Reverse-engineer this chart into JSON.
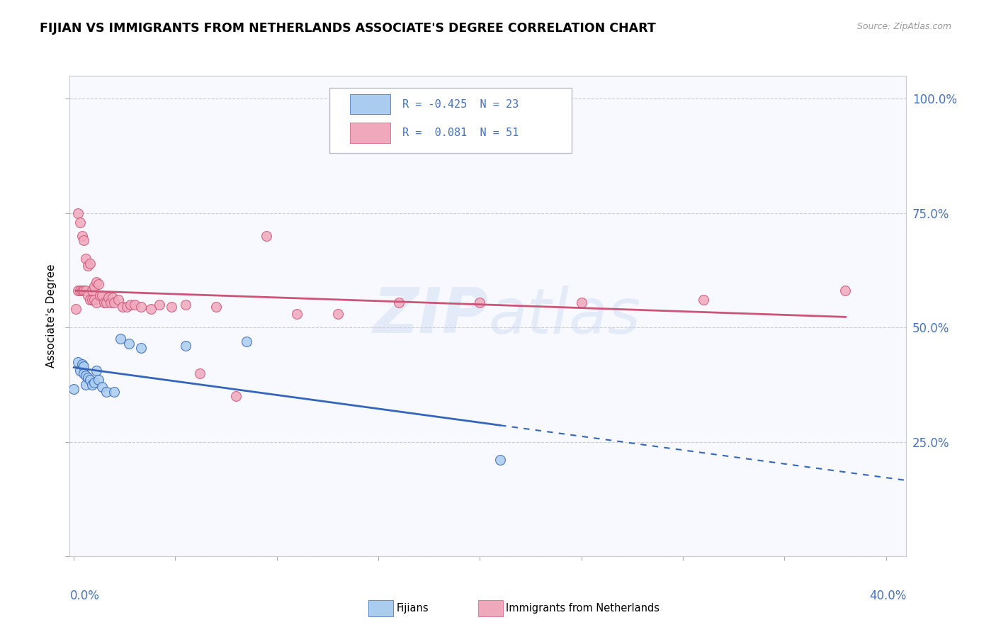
{
  "title": "FIJIAN VS IMMIGRANTS FROM NETHERLANDS ASSOCIATE'S DEGREE CORRELATION CHART",
  "source": "Source: ZipAtlas.com",
  "ylabel": "Associate's Degree",
  "fijian_color": "#aaccee",
  "netherlands_color": "#f0a8bc",
  "fijian_line_color": "#3366bb",
  "netherlands_line_color": "#cc5577",
  "background_color": "#ffffff",
  "plot_bg_color": "#f8f8ff",
  "xmin": -0.002,
  "xmax": 0.41,
  "ymin": 0.0,
  "ymax": 1.05,
  "r_fijian": -0.425,
  "n_fijian": 23,
  "r_neth": 0.081,
  "n_neth": 51,
  "fijian_x": [
    0.0,
    0.002,
    0.003,
    0.004,
    0.005,
    0.005,
    0.006,
    0.006,
    0.007,
    0.008,
    0.009,
    0.01,
    0.011,
    0.012,
    0.014,
    0.016,
    0.02,
    0.023,
    0.027,
    0.033,
    0.055,
    0.085,
    0.21
  ],
  "fijian_y": [
    0.365,
    0.425,
    0.405,
    0.42,
    0.415,
    0.4,
    0.395,
    0.375,
    0.39,
    0.385,
    0.375,
    0.38,
    0.405,
    0.385,
    0.37,
    0.36,
    0.36,
    0.475,
    0.465,
    0.455,
    0.46,
    0.47,
    0.21
  ],
  "neth_x": [
    0.001,
    0.002,
    0.002,
    0.003,
    0.003,
    0.004,
    0.004,
    0.005,
    0.005,
    0.006,
    0.006,
    0.007,
    0.007,
    0.008,
    0.008,
    0.009,
    0.009,
    0.01,
    0.01,
    0.011,
    0.011,
    0.012,
    0.013,
    0.014,
    0.015,
    0.016,
    0.017,
    0.018,
    0.019,
    0.02,
    0.022,
    0.024,
    0.026,
    0.028,
    0.03,
    0.033,
    0.038,
    0.042,
    0.048,
    0.055,
    0.062,
    0.07,
    0.08,
    0.095,
    0.11,
    0.13,
    0.16,
    0.2,
    0.25,
    0.31,
    0.38
  ],
  "neth_y": [
    0.54,
    0.75,
    0.58,
    0.73,
    0.58,
    0.7,
    0.58,
    0.69,
    0.58,
    0.65,
    0.58,
    0.635,
    0.57,
    0.64,
    0.56,
    0.58,
    0.56,
    0.59,
    0.56,
    0.6,
    0.555,
    0.595,
    0.57,
    0.57,
    0.555,
    0.555,
    0.565,
    0.555,
    0.565,
    0.555,
    0.56,
    0.545,
    0.545,
    0.55,
    0.55,
    0.545,
    0.54,
    0.55,
    0.545,
    0.55,
    0.4,
    0.545,
    0.35,
    0.7,
    0.53,
    0.53,
    0.555,
    0.555,
    0.555,
    0.56,
    0.58
  ]
}
